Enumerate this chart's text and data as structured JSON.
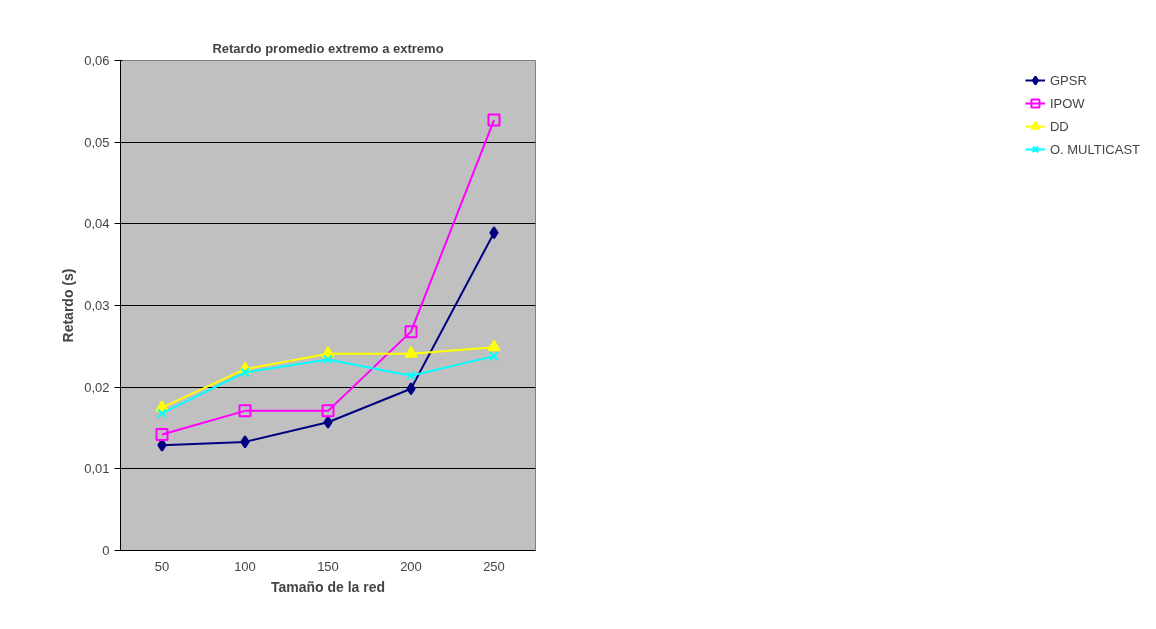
{
  "chart_data": {
    "type": "line",
    "title": "Retardo promedio extremo a extremo",
    "xlabel": "Tamaño de la red",
    "ylabel": "Retardo (s)",
    "categories": [
      "50",
      "100",
      "150",
      "200",
      "250"
    ],
    "series": [
      {
        "name": "GPSR",
        "color": "#000080",
        "marker": "diamond",
        "values": [
          0.0129,
          0.0133,
          0.0157,
          0.0198,
          0.0389
        ]
      },
      {
        "name": "IPOW",
        "color": "#ff00ff",
        "marker": "square",
        "values": [
          0.0142,
          0.0171,
          0.0171,
          0.0268,
          0.0527
        ]
      },
      {
        "name": "DD",
        "color": "#ffff00",
        "marker": "triangle",
        "values": [
          0.0175,
          0.0222,
          0.0241,
          0.0241,
          0.0249
        ]
      },
      {
        "name": "O. MULTICAST",
        "color": "#00ffff",
        "marker": "cross",
        "values": [
          0.0168,
          0.0218,
          0.0234,
          0.0214,
          0.0238
        ]
      }
    ],
    "ylim": [
      0,
      0.06
    ],
    "yticks": [
      0,
      {
        "value": 0.01,
        "label": "0,01"
      },
      {
        "value": 0.02,
        "label": "0,02"
      },
      {
        "value": 0.03,
        "label": "0,03"
      },
      {
        "value": 0.04,
        "label": "0,04"
      },
      {
        "value": 0.05,
        "label": "0,05"
      },
      {
        "value": 0.06,
        "label": "0,06"
      }
    ],
    "grid": "y",
    "legend": "right",
    "line_style": "solid"
  }
}
